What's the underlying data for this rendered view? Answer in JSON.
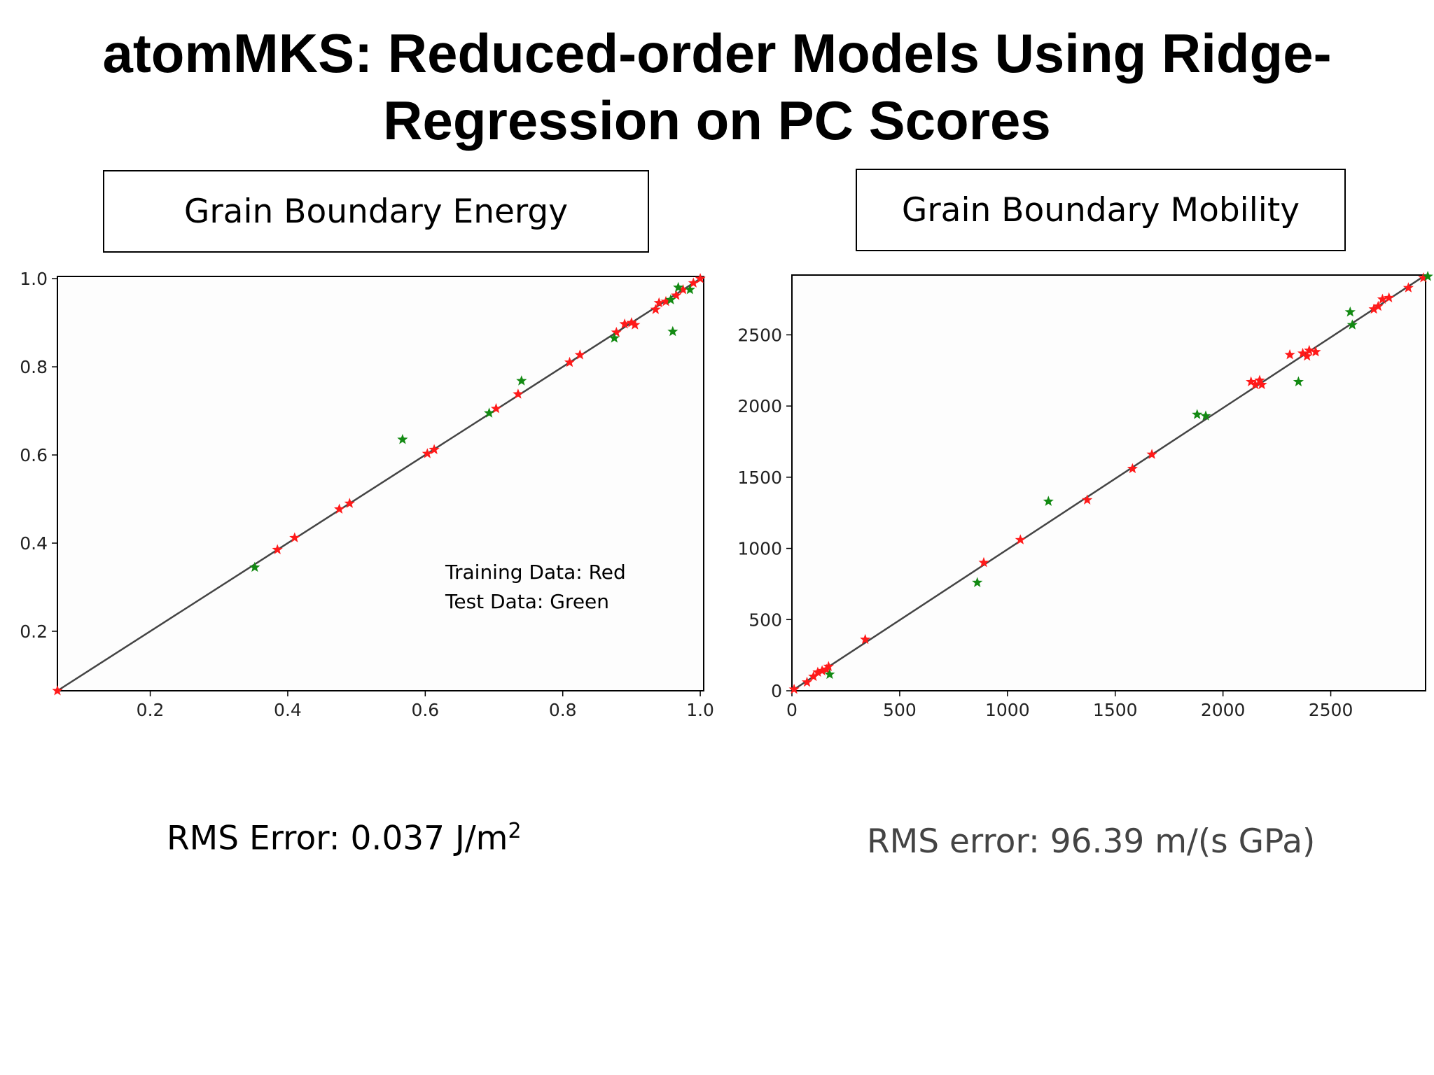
{
  "slide": {
    "title_line1": "atomMKS: Reduced-order Models Using Ridge-",
    "title_line2": "Regression on PC Scores"
  },
  "panels": {
    "left_label": "Grain Boundary Energy",
    "right_label": "Grain Boundary Mobility",
    "legend_line1": "Training Data: Red",
    "legend_line2": "Test Data: Green",
    "left_rms_text": "RMS  Error: 0.037 J/m",
    "left_rms_sup": "2",
    "right_rms_text": "RMS error: 96.39 m/(s GPa)"
  },
  "colors": {
    "train": "#ff1a1a",
    "test": "#138a13",
    "line": "#444444",
    "right_rms": "#444444"
  },
  "chart_data": [
    {
      "type": "scatter",
      "xlim": [
        0.065,
        1.005
      ],
      "ylim": [
        0.065,
        1.005
      ],
      "xticks": [
        0.2,
        0.4,
        0.6,
        0.8,
        1.0
      ],
      "xtick_labels": [
        "0.2",
        "0.4",
        "0.6",
        "0.8",
        "1.0"
      ],
      "yticks": [
        0.2,
        0.4,
        0.6,
        0.8,
        1.0
      ],
      "ytick_labels": [
        "0.2",
        "0.4",
        "0.6",
        "0.8",
        "1.0"
      ],
      "reference_line": [
        [
          0.065,
          0.065
        ],
        [
          1.005,
          1.005
        ]
      ],
      "series": [
        {
          "name": "Training Data: Red",
          "color": "#ff1a1a",
          "points": [
            [
              0.065,
              0.065
            ],
            [
              0.385,
              0.385
            ],
            [
              0.41,
              0.412
            ],
            [
              0.475,
              0.477
            ],
            [
              0.49,
              0.49
            ],
            [
              0.603,
              0.603
            ],
            [
              0.613,
              0.612
            ],
            [
              0.703,
              0.705
            ],
            [
              0.735,
              0.738
            ],
            [
              0.81,
              0.81
            ],
            [
              0.825,
              0.827
            ],
            [
              0.878,
              0.878
            ],
            [
              0.89,
              0.897
            ],
            [
              0.9,
              0.9
            ],
            [
              0.905,
              0.895
            ],
            [
              0.935,
              0.93
            ],
            [
              0.94,
              0.945
            ],
            [
              0.95,
              0.948
            ],
            [
              0.965,
              0.962
            ],
            [
              0.975,
              0.975
            ],
            [
              0.99,
              0.99
            ],
            [
              1.0,
              1.0
            ]
          ]
        },
        {
          "name": "Test Data: Green",
          "color": "#138a13",
          "points": [
            [
              0.352,
              0.345
            ],
            [
              0.567,
              0.635
            ],
            [
              0.693,
              0.695
            ],
            [
              0.74,
              0.768
            ],
            [
              0.875,
              0.865
            ],
            [
              0.957,
              0.952
            ],
            [
              0.96,
              0.88
            ],
            [
              0.968,
              0.98
            ],
            [
              0.985,
              0.975
            ]
          ]
        }
      ]
    },
    {
      "type": "scatter",
      "xlim": [
        0,
        2940
      ],
      "ylim": [
        0,
        2920
      ],
      "xticks": [
        0,
        500,
        1000,
        1500,
        2000,
        2500
      ],
      "xtick_labels": [
        "0",
        "500",
        "1000",
        "1500",
        "2000",
        "2500"
      ],
      "yticks": [
        0,
        500,
        1000,
        1500,
        2000,
        2500
      ],
      "ytick_labels": [
        "0",
        "500",
        "1000",
        "1500",
        "2000",
        "2500"
      ],
      "reference_line": [
        [
          0,
          0
        ],
        [
          2940,
          2920
        ]
      ],
      "series": [
        {
          "name": "Training Data: Red",
          "color": "#ff1a1a",
          "points": [
            [
              10,
              10
            ],
            [
              70,
              60
            ],
            [
              100,
              100
            ],
            [
              120,
              130
            ],
            [
              140,
              140
            ],
            [
              160,
              150
            ],
            [
              170,
              170
            ],
            [
              340,
              360
            ],
            [
              890,
              900
            ],
            [
              1060,
              1060
            ],
            [
              1370,
              1340
            ],
            [
              1580,
              1560
            ],
            [
              1670,
              1660
            ],
            [
              2130,
              2170
            ],
            [
              2150,
              2150
            ],
            [
              2170,
              2180
            ],
            [
              2180,
              2150
            ],
            [
              2310,
              2360
            ],
            [
              2370,
              2370
            ],
            [
              2390,
              2350
            ],
            [
              2400,
              2390
            ],
            [
              2430,
              2380
            ],
            [
              2700,
              2680
            ],
            [
              2720,
              2700
            ],
            [
              2740,
              2750
            ],
            [
              2770,
              2760
            ],
            [
              2860,
              2830
            ],
            [
              2930,
              2900
            ]
          ]
        },
        {
          "name": "Test Data: Green",
          "color": "#138a13",
          "points": [
            [
              175,
              115
            ],
            [
              860,
              760
            ],
            [
              1190,
              1330
            ],
            [
              1880,
              1940
            ],
            [
              1920,
              1930
            ],
            [
              2350,
              2170
            ],
            [
              2590,
              2660
            ],
            [
              2600,
              2570
            ],
            [
              2950,
              2910
            ]
          ]
        }
      ]
    }
  ]
}
